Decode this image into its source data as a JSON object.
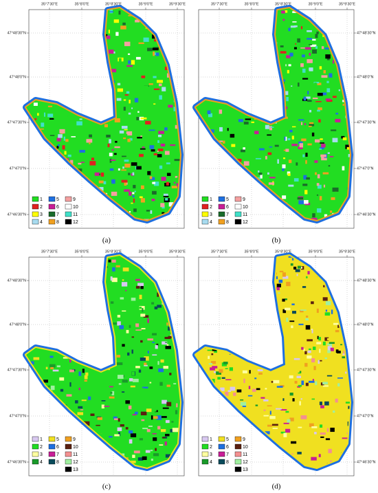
{
  "figure": {
    "panels": [
      {
        "label": "(a)",
        "lon_labels": [
          "35°7'30\"E",
          "35°8'0\"E",
          "35°8'30\"E",
          "35°9'0\"E",
          "35°9'30\"E"
        ],
        "lat_labels": [
          "47°48'30\"N",
          "47°48'0\"N",
          "47°47'30\"N",
          "47°47'0\"N",
          "47°46'30\"N"
        ],
        "legend": [
          {
            "label": "1",
            "color": "#22dd22"
          },
          {
            "label": "2",
            "color": "#e02020"
          },
          {
            "label": "3",
            "color": "#ffff00"
          },
          {
            "label": "4",
            "color": "#a8dcf0"
          },
          {
            "label": "5",
            "color": "#1e6fe0"
          },
          {
            "label": "6",
            "color": "#c81e96"
          },
          {
            "label": "7",
            "color": "#1a6b2a"
          },
          {
            "label": "8",
            "color": "#f0a020"
          },
          {
            "label": "9",
            "color": "#f4a0a0"
          },
          {
            "label": "10",
            "color": "#ffffff"
          },
          {
            "label": "11",
            "color": "#40e0c8"
          },
          {
            "label": "12",
            "color": "#000000"
          }
        ]
      },
      {
        "label": "(b)",
        "lon_labels": [
          "35°7'30\"E",
          "35°8'0\"E",
          "35°8'30\"E",
          "35°9'0\"E",
          "35°9'30\"E"
        ],
        "lat_labels": [
          "47°48'30\"N",
          "47°48'0\"N",
          "47°47'30\"N",
          "47°47'0\"N",
          "47°46'30\"N"
        ],
        "legend": [
          {
            "label": "1",
            "color": "#22dd22"
          },
          {
            "label": "2",
            "color": "#e02020"
          },
          {
            "label": "3",
            "color": "#ffff00"
          },
          {
            "label": "4",
            "color": "#a8dcf0"
          },
          {
            "label": "5",
            "color": "#1e6fe0"
          },
          {
            "label": "6",
            "color": "#c81e96"
          },
          {
            "label": "7",
            "color": "#1a6b2a"
          },
          {
            "label": "8",
            "color": "#f0a020"
          },
          {
            "label": "9",
            "color": "#f4a0a0"
          },
          {
            "label": "10",
            "color": "#ffffff"
          },
          {
            "label": "11",
            "color": "#40e0c8"
          },
          {
            "label": "12",
            "color": "#000000"
          }
        ]
      },
      {
        "label": "(c)",
        "lon_labels": [
          "35°7'30\"E",
          "35°8'0\"E",
          "35°8'30\"E",
          "35°9'0\"E",
          "35°9'30\"E"
        ],
        "lat_labels": [
          "47°48'30\"N",
          "47°48'0\"N",
          "47°47'30\"N",
          "47°47'0\"N",
          "47°46'30\"N"
        ],
        "legend": [
          {
            "label": "1",
            "color": "#d8c8f0"
          },
          {
            "label": "2",
            "color": "#22dd22"
          },
          {
            "label": "3",
            "color": "#ffffa0"
          },
          {
            "label": "4",
            "color": "#1a9a2a"
          },
          {
            "label": "5",
            "color": "#f0e020"
          },
          {
            "label": "6",
            "color": "#1e6fe0"
          },
          {
            "label": "7",
            "color": "#c81e96"
          },
          {
            "label": "8",
            "color": "#0a4a5a"
          },
          {
            "label": "9",
            "color": "#f0a020"
          },
          {
            "label": "10",
            "color": "#5a2010"
          },
          {
            "label": "11",
            "color": "#f49090"
          },
          {
            "label": "12",
            "color": "#a0f0a0"
          },
          {
            "label": "13",
            "color": "#000000"
          }
        ]
      },
      {
        "label": "(d)",
        "lon_labels": [
          "35°7'30\"E",
          "35°8'0\"E",
          "35°8'30\"E",
          "35°9'0\"E",
          "35°9'30\"E"
        ],
        "lat_labels": [
          "47°48'30\"N",
          "47°48'0\"N",
          "47°47'30\"N",
          "47°47'0\"N",
          "47°46'30\"N"
        ],
        "legend": [
          {
            "label": "1",
            "color": "#d8c8f0"
          },
          {
            "label": "2",
            "color": "#22dd22"
          },
          {
            "label": "3",
            "color": "#ffffa0"
          },
          {
            "label": "4",
            "color": "#1a9a2a"
          },
          {
            "label": "5",
            "color": "#f0e020"
          },
          {
            "label": "6",
            "color": "#1e6fe0"
          },
          {
            "label": "7",
            "color": "#c81e96"
          },
          {
            "label": "8",
            "color": "#0a4a5a"
          },
          {
            "label": "9",
            "color": "#f0a020"
          },
          {
            "label": "10",
            "color": "#5a2010"
          },
          {
            "label": "11",
            "color": "#f49090"
          },
          {
            "label": "12",
            "color": "#a0f0a0"
          },
          {
            "label": "13",
            "color": "#000000"
          }
        ]
      }
    ]
  }
}
